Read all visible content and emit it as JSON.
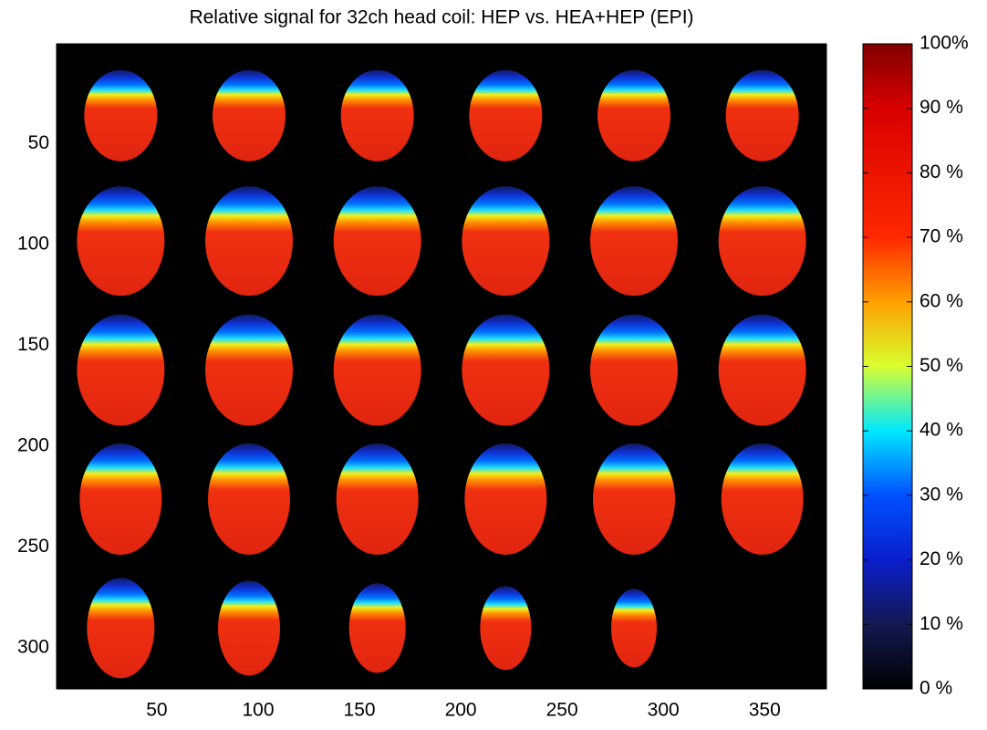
{
  "chart_data": {
    "type": "image",
    "title": "Relative signal for 32ch head coil: HEP vs. HEA+HEP (EPI)",
    "xlim": [
      0.5,
      380.5
    ],
    "ylim": [
      0.5,
      320.5
    ],
    "y_reversed": true,
    "xticks": [
      50,
      100,
      150,
      200,
      250,
      300,
      350
    ],
    "yticks": [
      50,
      100,
      150,
      200,
      250,
      300
    ],
    "colorbar": {
      "colormap": "jet-black",
      "lim": [
        0,
        100
      ],
      "ticks": [
        {
          "value": 0,
          "label": "0 %"
        },
        {
          "value": 10,
          "label": "10 %"
        },
        {
          "value": 20,
          "label": "20 %"
        },
        {
          "value": 30,
          "label": "30 %"
        },
        {
          "value": 40,
          "label": "40 %"
        },
        {
          "value": 50,
          "label": "50 %"
        },
        {
          "value": 60,
          "label": "60 %"
        },
        {
          "value": 70,
          "label": "70 %"
        },
        {
          "value": 80,
          "label": "80 %"
        },
        {
          "value": 90,
          "label": "90 %"
        },
        {
          "value": 100,
          "label": "100%"
        }
      ]
    }
  }
}
